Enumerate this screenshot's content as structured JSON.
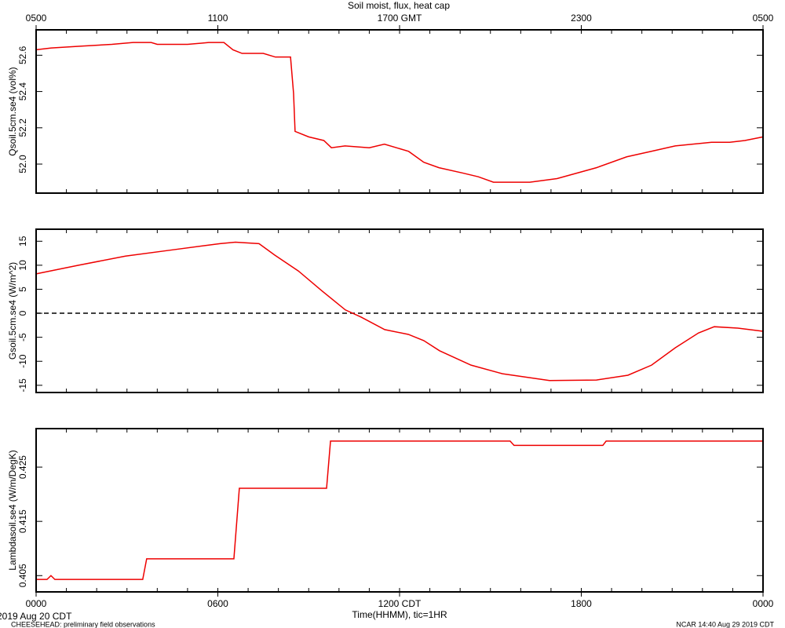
{
  "footer": {
    "date": "2019 Aug 20 CDT",
    "project": "CHEESEHEAD: preliminary field observations",
    "credit": "NCAR 14:40 Aug 29 2019 CDT"
  },
  "chart_data": [
    {
      "type": "line",
      "title": "Soil moist, flux, heat cap",
      "ylabel": "Qsoil.5cm.se4 (vol%)",
      "xlim": [
        0,
        24
      ],
      "ylim": [
        51.84,
        52.74
      ],
      "yticks": [
        {
          "value": 52,
          "label": "52.0"
        },
        52.2,
        52.4,
        52.6
      ],
      "x2ticks": [
        {
          "value": 0,
          "label": "0500"
        },
        {
          "value": 6,
          "label": "1100"
        },
        {
          "value": 12,
          "label": "1700 GMT"
        },
        {
          "value": 18,
          "label": "2300"
        },
        {
          "value": 24,
          "label": "0500"
        }
      ],
      "color": "#ee0000",
      "x": [
        0,
        0.5,
        1.5,
        2.5,
        3.2,
        3.8,
        4.0,
        5.0,
        5.7,
        6.2,
        6.5,
        6.8,
        7.5,
        7.9,
        8.4,
        8.5,
        8.55,
        9.0,
        9.5,
        9.75,
        10.2,
        11.0,
        11.5,
        12.3,
        12.8,
        13.3,
        14.1,
        14.6,
        15.1,
        16.3,
        17.2,
        18.5,
        19.5,
        20.3,
        21.1,
        22.3,
        22.9,
        23.4,
        24
      ],
      "values": [
        52.63,
        52.64,
        52.65,
        52.66,
        52.67,
        52.67,
        52.66,
        52.66,
        52.67,
        52.67,
        52.63,
        52.61,
        52.61,
        52.59,
        52.59,
        52.39,
        52.18,
        52.15,
        52.13,
        52.09,
        52.1,
        52.09,
        52.11,
        52.07,
        52.01,
        51.98,
        51.95,
        51.93,
        51.9,
        51.9,
        51.92,
        51.98,
        52.04,
        52.07,
        52.1,
        52.12,
        52.12,
        52.13,
        52.15
      ]
    },
    {
      "type": "line",
      "ylabel": "Gsoil.5cm.se4 (W/m^2)",
      "xlim": [
        0,
        24
      ],
      "ylim": [
        -16.5,
        17.5
      ],
      "yticks": [
        -15,
        -10,
        -5,
        0,
        5,
        10,
        15
      ],
      "zero_line": true,
      "color": "#ee0000",
      "x": [
        0,
        1.4,
        2.95,
        4.5,
        6.07,
        6.58,
        7.36,
        7.88,
        8.66,
        9.43,
        10.21,
        10.73,
        11.51,
        12.29,
        12.8,
        13.32,
        14.36,
        15.4,
        16.95,
        18.5,
        19.54,
        20.32,
        21.1,
        21.87,
        22.39,
        23.17,
        24
      ],
      "values": [
        8.2,
        10,
        11.9,
        13.2,
        14.5,
        14.8,
        14.5,
        12.1,
        8.8,
        4.7,
        0.7,
        -0.8,
        -3.4,
        -4.4,
        -5.7,
        -7.8,
        -10.8,
        -12.6,
        -14.0,
        -13.9,
        -12.9,
        -10.8,
        -7.2,
        -4.1,
        -2.8,
        -3.1,
        -3.75
      ]
    },
    {
      "type": "line",
      "ylabel": "Lambdasoil.se4 (W/m/DegK)",
      "xlabel": "Time(HHMM), tic=1HR",
      "xlim": [
        0,
        24
      ],
      "ylim": [
        0.402,
        0.4321
      ],
      "yticks": [
        0.405,
        0.415,
        0.425
      ],
      "xticks": [
        {
          "value": 0,
          "label": "0000"
        },
        {
          "value": 6,
          "label": "0600"
        },
        {
          "value": 12,
          "label": "1200 CDT"
        },
        {
          "value": 18,
          "label": "1800"
        },
        {
          "value": 24,
          "label": "0000"
        }
      ],
      "minor_xticks": [
        0,
        1,
        2,
        3,
        4,
        5,
        6,
        7,
        8,
        9,
        10,
        11,
        12,
        13,
        14,
        15,
        16,
        17,
        18,
        19,
        20,
        21,
        22,
        23,
        24
      ],
      "color": "#ee0000",
      "x": [
        0,
        0.36,
        0.49,
        0.62,
        3.52,
        3.65,
        6.53,
        6.71,
        9.59,
        9.72,
        15.65,
        15.78,
        18.71,
        18.82,
        24
      ],
      "values": [
        0.4043,
        0.4043,
        0.405,
        0.4043,
        0.4043,
        0.4081,
        0.4081,
        0.4211,
        0.4211,
        0.4298,
        0.4298,
        0.429,
        0.429,
        0.4298,
        0.4298
      ]
    }
  ]
}
